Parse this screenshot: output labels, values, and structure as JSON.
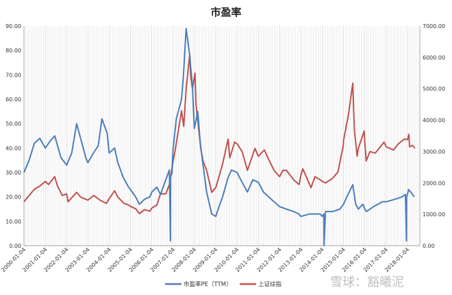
{
  "chart_data": {
    "type": "line",
    "title": "市盈率",
    "xlabel": "",
    "ylabel": "",
    "y_left_lim": [
      0,
      90
    ],
    "y_right_lim": [
      0,
      7000
    ],
    "y_left_ticks": [
      "0.00",
      "10.00",
      "20.00",
      "30.00",
      "40.00",
      "50.00",
      "60.00",
      "70.00",
      "80.00",
      "90.00"
    ],
    "y_right_ticks": [
      "0.00",
      "1000.00",
      "2000.00",
      "3000.00",
      "4000.00",
      "5000.00",
      "6000.00",
      "7000.00"
    ],
    "x_ticks": [
      "2000-01-04",
      "2001-01-04",
      "2002-01-04",
      "2003-01-04",
      "2004-01-04",
      "2005-01-04",
      "2006-01-04",
      "2007-01-04",
      "2008-01-04",
      "2009-01-04",
      "2010-01-04",
      "2011-01-04",
      "2012-01-04",
      "2013-01-04",
      "2014-01-04",
      "2015-01-04",
      "2016-01-04",
      "2017-01-04",
      "2018-01-04"
    ],
    "grid": "vertical",
    "legend_position": "bottom",
    "series": [
      {
        "name": "市盈率PE（TTM）",
        "axis": "left",
        "color": "#4a7ebb",
        "x": [
          "2000-01-04",
          "2000-04-01",
          "2000-07-01",
          "2000-10-01",
          "2001-01-04",
          "2001-04-01",
          "2001-06-15",
          "2001-08-01",
          "2001-10-01",
          "2002-01-04",
          "2002-04-01",
          "2002-06-25",
          "2002-09-01",
          "2002-12-01",
          "2003-01-04",
          "2003-04-10",
          "2003-07-01",
          "2003-09-01",
          "2003-12-01",
          "2004-01-04",
          "2004-04-07",
          "2004-06-01",
          "2004-09-01",
          "2004-12-01",
          "2005-01-04",
          "2005-04-01",
          "2005-06-06",
          "2005-09-01",
          "2005-12-01",
          "2006-01-04",
          "2006-04-01",
          "2006-06-01",
          "2006-09-01",
          "2006-11-01",
          "2006-11-20",
          "2006-11-22",
          "2006-12-15",
          "2007-01-04",
          "2007-03-01",
          "2007-05-29",
          "2007-07-01",
          "2007-08-15",
          "2007-10-16",
          "2007-12-01",
          "2008-01-04",
          "2008-03-01",
          "2008-04-15",
          "2008-06-01",
          "2008-08-01",
          "2008-10-28",
          "2009-01-04",
          "2009-03-01",
          "2009-05-01",
          "2009-08-04",
          "2009-10-01",
          "2010-01-04",
          "2010-04-01",
          "2010-07-01",
          "2010-10-01",
          "2011-01-04",
          "2011-04-01",
          "2011-07-01",
          "2011-10-01",
          "2012-01-04",
          "2012-05-01",
          "2012-09-01",
          "2012-12-01",
          "2013-01-04",
          "2013-06-01",
          "2013-10-01",
          "2013-12-01",
          "2014-01-04",
          "2014-02-01",
          "2014-02-03",
          "2014-03-01",
          "2014-07-01",
          "2014-11-01",
          "2015-01-04",
          "2015-03-01",
          "2015-06-12",
          "2015-08-01",
          "2015-09-15",
          "2015-12-01",
          "2016-01-04",
          "2016-02-01",
          "2016-06-01",
          "2016-11-01",
          "2017-01-04",
          "2017-06-01",
          "2017-10-01",
          "2017-12-01",
          "2017-12-18",
          "2017-12-20",
          "2018-01-04",
          "2018-01-24",
          "2018-03-01",
          "2018-05-01"
        ],
        "values": [
          30,
          35,
          42,
          44,
          40,
          43,
          45,
          41,
          36,
          33,
          38,
          50,
          44,
          36,
          34,
          38,
          41,
          52,
          46,
          38,
          40,
          34,
          28,
          24,
          23,
          20,
          17,
          19,
          20,
          22,
          24,
          21,
          27,
          31,
          2,
          28,
          30,
          40,
          52,
          60,
          70,
          89,
          78,
          65,
          48,
          55,
          42,
          33,
          22,
          13,
          12,
          16,
          20,
          28,
          31,
          30,
          26,
          22,
          27,
          26,
          22,
          20,
          18,
          16,
          15,
          14,
          13,
          12,
          13,
          13,
          13,
          12,
          13,
          0,
          14,
          14,
          15,
          17,
          20,
          25,
          17,
          15,
          17,
          15,
          14,
          16,
          18,
          18,
          19,
          20,
          21,
          2,
          20,
          21,
          23,
          22,
          20
        ]
      },
      {
        "name": "上证综指",
        "axis": "right",
        "color": "#c0504d",
        "x": [
          "2000-01-04",
          "2000-04-01",
          "2000-07-01",
          "2000-10-01",
          "2001-01-04",
          "2001-03-01",
          "2001-06-13",
          "2001-08-01",
          "2001-10-22",
          "2002-01-04",
          "2002-01-29",
          "2002-06-25",
          "2002-09-01",
          "2003-01-04",
          "2003-04-15",
          "2003-08-01",
          "2003-11-18",
          "2004-01-04",
          "2004-04-07",
          "2004-06-01",
          "2004-09-13",
          "2004-12-01",
          "2005-01-04",
          "2005-04-01",
          "2005-06-06",
          "2005-09-01",
          "2005-12-01",
          "2006-01-04",
          "2006-04-01",
          "2006-06-01",
          "2006-09-01",
          "2006-11-01",
          "2007-01-04",
          "2007-02-01",
          "2007-05-29",
          "2007-07-05",
          "2007-08-15",
          "2007-10-16",
          "2007-11-01",
          "2007-12-01",
          "2008-01-14",
          "2008-02-01",
          "2008-03-01",
          "2008-04-22",
          "2008-06-01",
          "2008-08-01",
          "2008-10-28",
          "2009-01-04",
          "2009-03-01",
          "2009-05-01",
          "2009-08-04",
          "2009-09-01",
          "2009-11-24",
          "2010-01-04",
          "2010-04-01",
          "2010-07-02",
          "2010-11-08",
          "2011-01-04",
          "2011-04-18",
          "2011-07-01",
          "2011-10-01",
          "2012-01-04",
          "2012-03-01",
          "2012-05-01",
          "2012-09-01",
          "2012-12-03",
          "2013-01-04",
          "2013-02-06",
          "2013-06-25",
          "2013-09-01",
          "2013-12-01",
          "2014-01-04",
          "2014-03-01",
          "2014-07-01",
          "2014-10-01",
          "2014-12-31",
          "2015-01-04",
          "2015-04-01",
          "2015-06-12",
          "2015-07-08",
          "2015-08-26",
          "2015-09-15",
          "2015-12-23",
          "2016-01-04",
          "2016-01-28",
          "2016-04-01",
          "2016-07-01",
          "2016-11-29",
          "2017-01-04",
          "2017-05-11",
          "2017-08-01",
          "2017-11-14",
          "2018-01-04",
          "2018-01-29",
          "2018-02-09",
          "2018-04-01",
          "2018-05-10"
        ],
        "values": [
          1400,
          1600,
          1800,
          1900,
          2050,
          1950,
          2200,
          1900,
          1600,
          1650,
          1400,
          1700,
          1550,
          1450,
          1600,
          1450,
          1350,
          1500,
          1750,
          1550,
          1350,
          1300,
          1250,
          1180,
          1020,
          1150,
          1100,
          1200,
          1300,
          1650,
          1650,
          1950,
          2700,
          2950,
          4300,
          3800,
          5000,
          6100,
          5400,
          5000,
          5500,
          4500,
          4000,
          3100,
          2700,
          2400,
          1700,
          1850,
          2200,
          2600,
          3400,
          2800,
          3300,
          3250,
          3000,
          2400,
          3100,
          2850,
          3050,
          2750,
          2400,
          2200,
          2400,
          2400,
          2100,
          1950,
          2250,
          2450,
          1850,
          2200,
          2100,
          2050,
          2000,
          2150,
          2350,
          3200,
          3350,
          4200,
          5180,
          3700,
          2850,
          3100,
          3650,
          3300,
          2700,
          3000,
          2950,
          3300,
          3150,
          3050,
          3250,
          3400,
          3380,
          3550,
          3150,
          3200,
          3100
        ]
      }
    ]
  },
  "watermark": "雪球：豁曦泥"
}
